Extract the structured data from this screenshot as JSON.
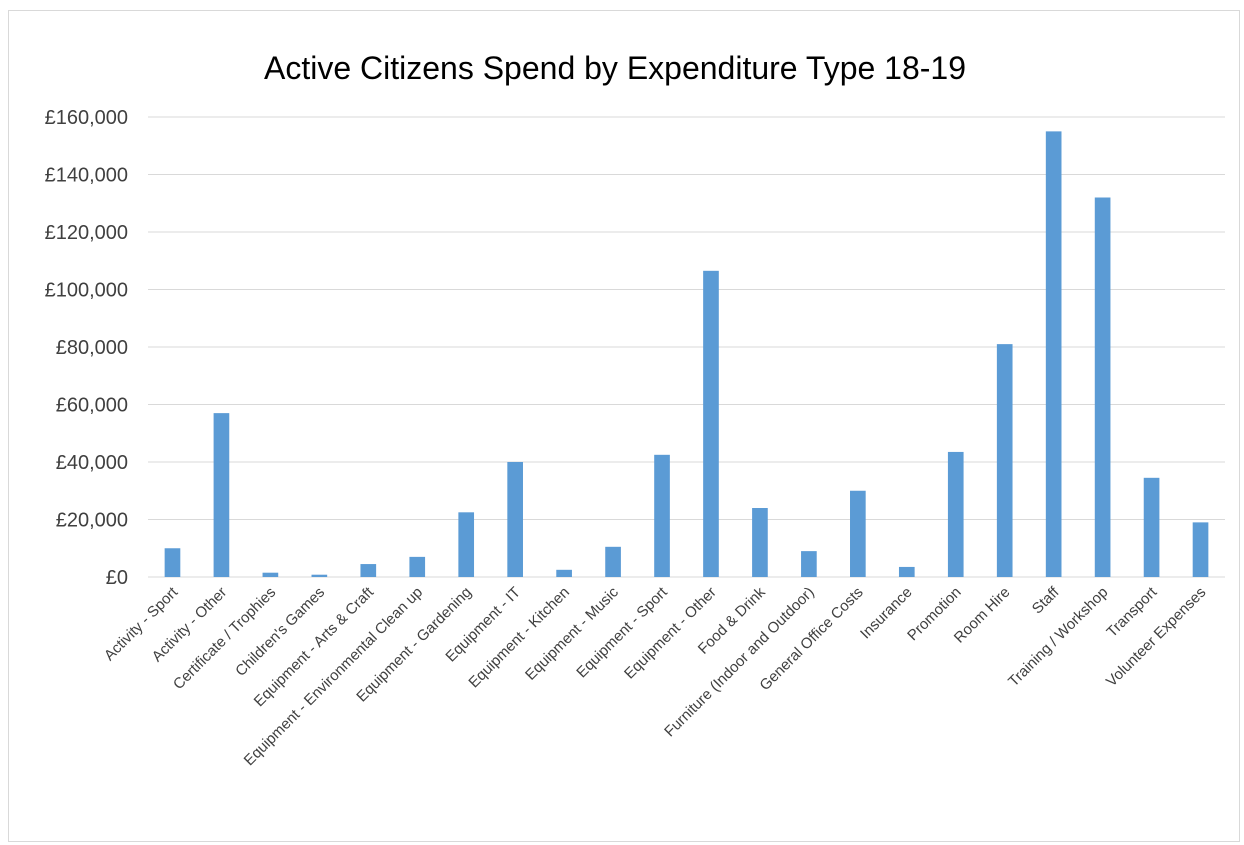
{
  "chart_data": {
    "type": "bar",
    "title": "Active Citizens Spend by Expenditure Type 18-19",
    "xlabel": "",
    "ylabel": "",
    "ylim": [
      0,
      160000
    ],
    "yticks": [
      0,
      20000,
      40000,
      60000,
      80000,
      100000,
      120000,
      140000,
      160000
    ],
    "ytick_labels": [
      "£0",
      "£20,000",
      "£40,000",
      "£60,000",
      "£80,000",
      "£100,000",
      "£120,000",
      "£140,000",
      "£160,000"
    ],
    "grid": true,
    "legend": "none",
    "bar_color": "#5b9bd5",
    "categories": [
      "Activity - Sport",
      "Activity - Other",
      "Certificate / Trophies",
      "Children's Games",
      "Equipment - Arts & Craft",
      "Equipment - Environmental Clean up",
      "Equipment - Gardening",
      "Equipment - IT",
      "Equipment - Kitchen",
      "Equipment - Music",
      "Equipment - Sport",
      "Equipment - Other",
      "Food & Drink",
      "Furniture (Indoor and Outdoor)",
      "General Office Costs",
      "Insurance",
      "Promotion",
      "Room Hire",
      "Staff",
      "Training / Workshop",
      "Transport",
      "Volunteer Expenses"
    ],
    "values": [
      10000,
      57000,
      1500,
      800,
      4500,
      7000,
      22500,
      40000,
      2500,
      10500,
      42500,
      106500,
      24000,
      9000,
      30000,
      3500,
      43500,
      81000,
      155000,
      132000,
      34500,
      19000
    ]
  }
}
